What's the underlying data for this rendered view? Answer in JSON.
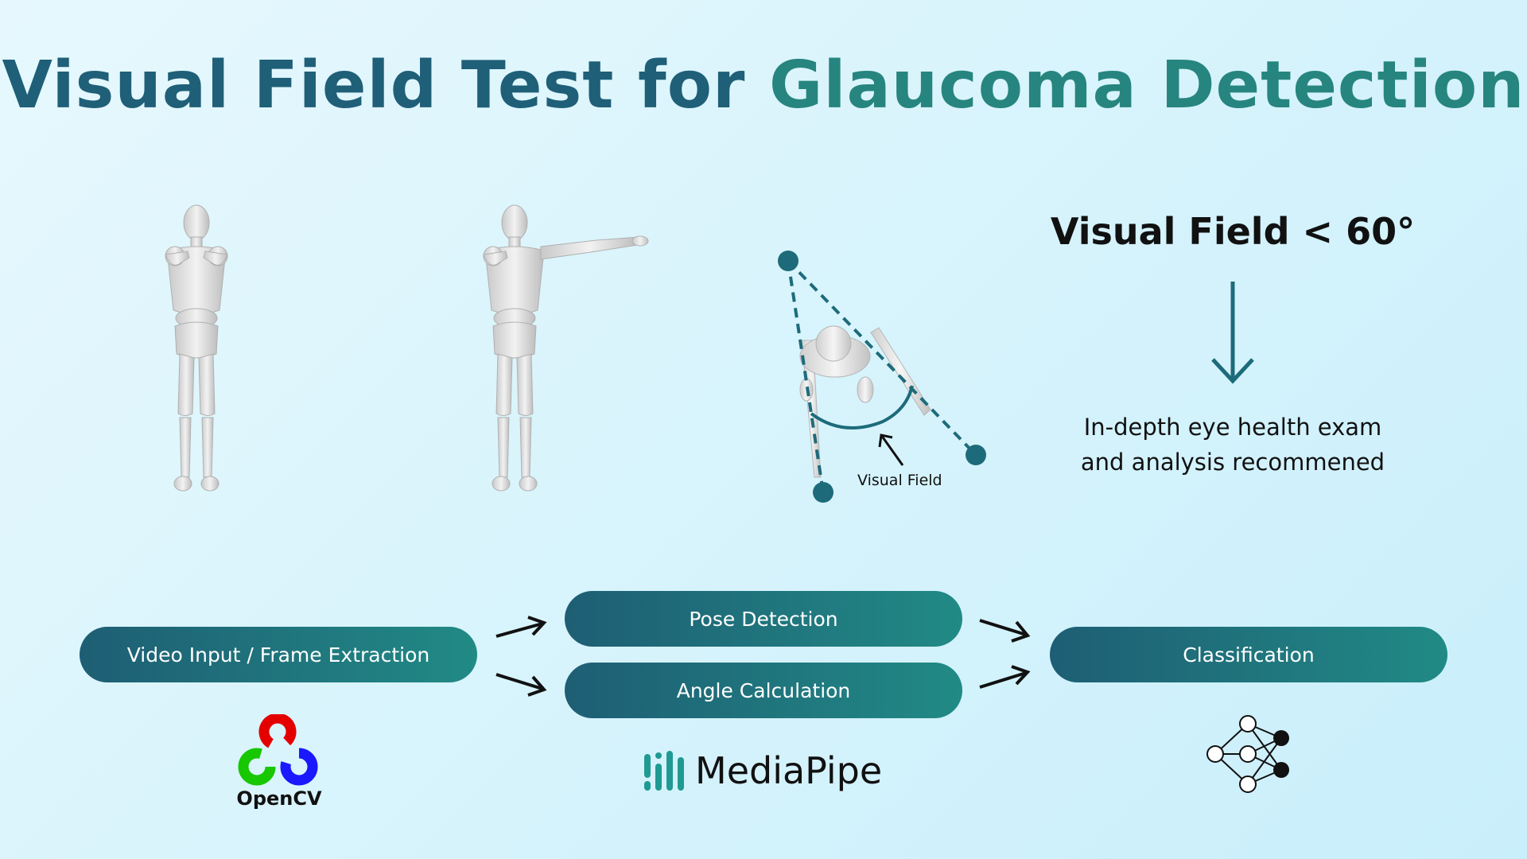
{
  "title": {
    "part1": "Visual Field Test for ",
    "part2": "Glaucoma Detection"
  },
  "illustration": {
    "angle_label": "Visual Field",
    "threshold": "Visual Field < 60°",
    "recommendation_line1": "In-depth eye health exam",
    "recommendation_line2": "and analysis recommened"
  },
  "pipeline": {
    "step1": "Video Input / Frame Extraction",
    "step2a": "Pose Detection",
    "step2b": "Angle Calculation",
    "step3": "Classification"
  },
  "logos": {
    "opencv": "OpenCV",
    "mediapipe": "MediaPipe",
    "neural_net_icon": "neural-network-icon"
  },
  "colors": {
    "title_dark": "#1f5f78",
    "title_teal": "#27857f",
    "accent": "#1d6b7a",
    "pill_start": "#1e5e74",
    "pill_end": "#218a85"
  }
}
